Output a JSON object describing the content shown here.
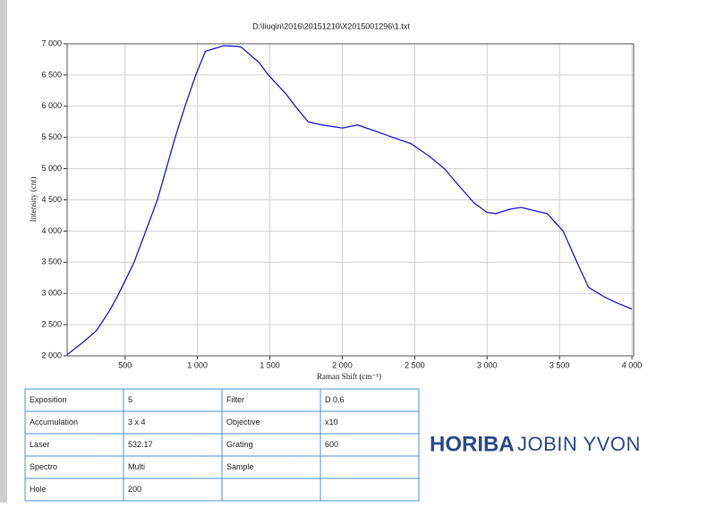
{
  "chart_data": {
    "type": "line",
    "title": "D:\\liuqin\\2016\\20151210\\X2015001296\\1.txt",
    "xlabel": "Raman Shift (cm⁻¹)",
    "ylabel": "Intensity (cnt)",
    "color": "#1a1adc",
    "grid": true,
    "xlim": [
      100,
      4012
    ],
    "ylim": [
      2000,
      7000
    ],
    "xticks": [
      500,
      {
        "value": 1000,
        "label": "1 000"
      },
      {
        "value": 1500,
        "label": "1 500"
      },
      {
        "value": 2000,
        "label": "2 000"
      },
      {
        "value": 2500,
        "label": "2 500"
      },
      {
        "value": 3000,
        "label": "3 000"
      },
      {
        "value": 3500,
        "label": "3 500"
      },
      {
        "value": 4000,
        "label": "4 000"
      }
    ],
    "yticks": [
      {
        "value": 2000,
        "label": "2 000"
      },
      {
        "value": 2500,
        "label": "2 500"
      },
      {
        "value": 3000,
        "label": "3 000"
      },
      {
        "value": 3500,
        "label": "3 500"
      },
      {
        "value": 4000,
        "label": "4 000"
      },
      {
        "value": 4500,
        "label": "4 500"
      },
      {
        "value": 5000,
        "label": "5 000"
      },
      {
        "value": 5500,
        "label": "5 500"
      },
      {
        "value": 6000,
        "label": "6 000"
      },
      {
        "value": 6500,
        "label": "6 500"
      },
      {
        "value": 7000,
        "label": "7 000"
      }
    ],
    "x": [
      100,
      200,
      300,
      330,
      400,
      457,
      500,
      562,
      643,
      723,
      785,
      846,
      914,
      988,
      1055,
      1180,
      1270,
      1300,
      1425,
      1490,
      1610,
      1675,
      1765,
      1860,
      2000,
      2105,
      2230,
      2350,
      2475,
      2600,
      2705,
      2815,
      2910,
      3000,
      3060,
      3155,
      3235,
      3340,
      3415,
      3525,
      3620,
      3700,
      3805,
      3895,
      4000
    ],
    "values": [
      2020,
      2200,
      2400,
      2500,
      2750,
      3000,
      3200,
      3500,
      4000,
      4500,
      5000,
      5500,
      6000,
      6500,
      6880,
      6970,
      6960,
      6950,
      6700,
      6500,
      6200,
      6000,
      5750,
      5700,
      5650,
      5700,
      5600,
      5500,
      5400,
      5200,
      5000,
      4700,
      4450,
      4300,
      4280,
      4350,
      4380,
      4320,
      4280,
      4000,
      3500,
      3100,
      2950,
      2850,
      2750
    ]
  },
  "table": {
    "rows": [
      [
        "Exposition",
        "5",
        "Filter",
        "D 0.6"
      ],
      [
        "Accumulation",
        "3 x 4",
        "Objective",
        "x10"
      ],
      [
        "Laser",
        "532.17",
        "Grating",
        "600"
      ],
      [
        "Spectro",
        "Multi",
        "Sample",
        null
      ],
      [
        "Hole",
        "200",
        null,
        null
      ]
    ]
  },
  "logo": {
    "brand": "HORIBA",
    "sub": "JOBIN YVON"
  }
}
